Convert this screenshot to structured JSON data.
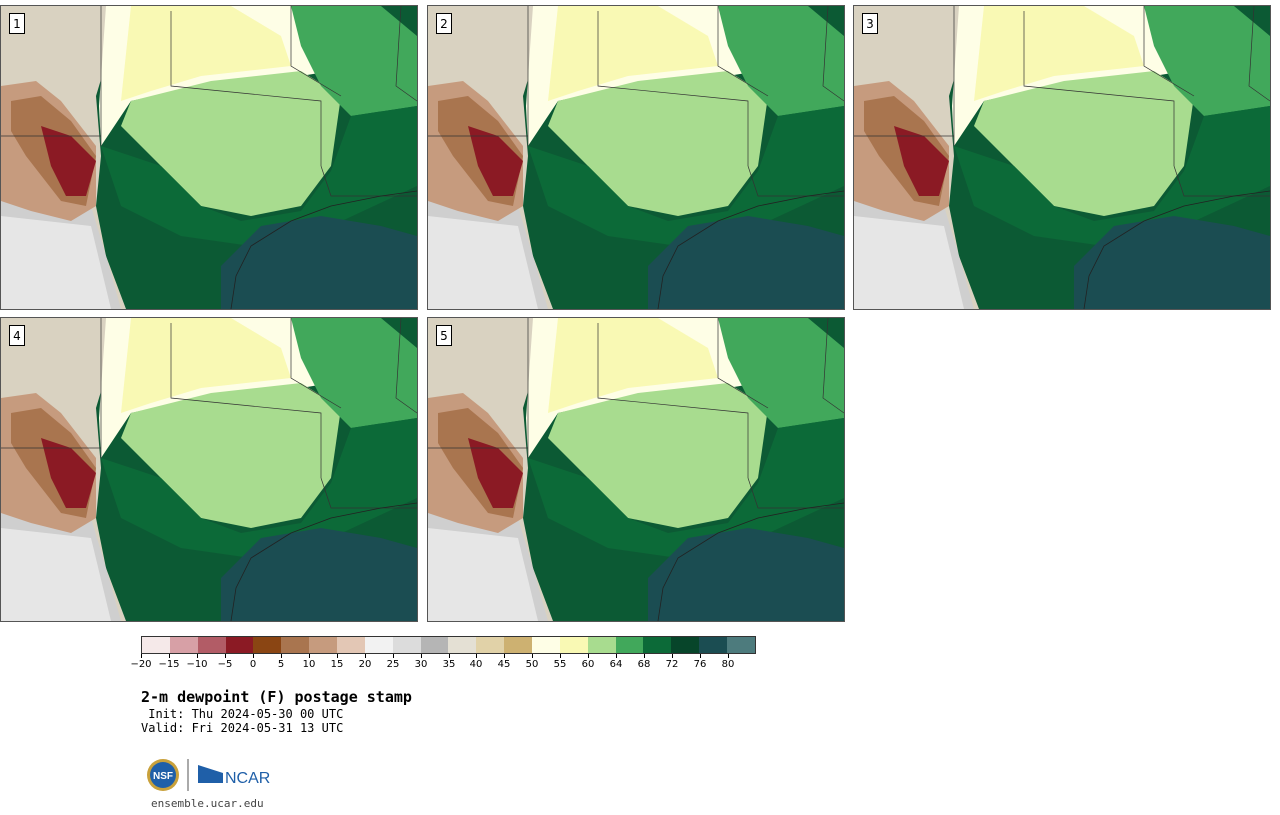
{
  "panels": [
    {
      "label": "1"
    },
    {
      "label": "2"
    },
    {
      "label": "3"
    },
    {
      "label": "4"
    },
    {
      "label": "5"
    }
  ],
  "colorbar": {
    "colors": [
      "#f5e9e9",
      "#d7a0a6",
      "#b25c66",
      "#8b1a24",
      "#8a4513",
      "#a9754f",
      "#c69b7e",
      "#e3c7b5",
      "#f2f2f2",
      "#dcdcdc",
      "#b5b5b5",
      "#e4e0d4",
      "#e1d2a8",
      "#cdb171",
      "#fefee6",
      "#f9f9b4",
      "#a8dc8f",
      "#41a85b",
      "#0c6a38",
      "#07452a",
      "#1b4d52",
      "#4d7b7d"
    ],
    "ticks": [
      "−20",
      "−15",
      "−10",
      "−5",
      "0",
      "5",
      "10",
      "15",
      "20",
      "25",
      "30",
      "35",
      "40",
      "45",
      "50",
      "55",
      "60",
      "64",
      "68",
      "72",
      "76",
      "80"
    ]
  },
  "title": "2-m dewpoint (F) postage stamp",
  "init": " Init: Thu 2024-05-30 00 UTC",
  "valid": "Valid: Fri 2024-05-31 13 UTC",
  "logos": {
    "nsf": "NSF",
    "ncar": "NCAR"
  },
  "site": "ensemble.ucar.edu"
}
